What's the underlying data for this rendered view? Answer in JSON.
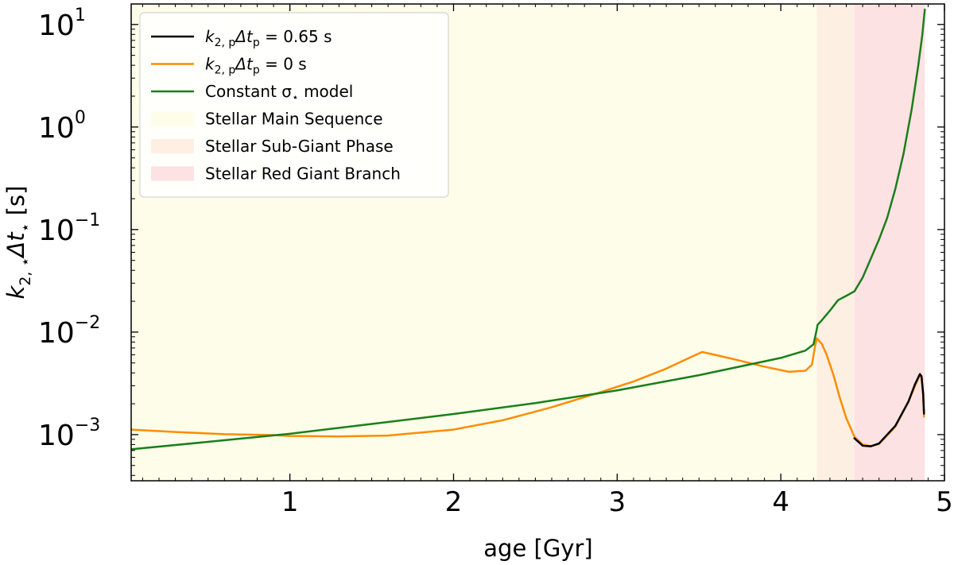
{
  "chart_data": {
    "type": "line",
    "xlabel": "age [Gyr]",
    "ylabel_parts": {
      "base": "k",
      "sub": "2, ⋆",
      "rest": "Δt",
      "rest_sub": "⋆",
      "unit": " [s]"
    },
    "xlim": [
      0.03,
      5.0
    ],
    "ylim_log10": [
      -3.45,
      1.2
    ],
    "x_ticks": [
      1,
      2,
      3,
      4,
      5
    ],
    "x_tick_labels": [
      "1",
      "2",
      "3",
      "4",
      "5"
    ],
    "y_ticks_exp": [
      -3,
      -2,
      -1,
      0,
      1
    ],
    "y_tick_labels": [
      {
        "base": "10",
        "exp": "−3"
      },
      {
        "base": "10",
        "exp": "−2"
      },
      {
        "base": "10",
        "exp": "−1"
      },
      {
        "base": "10",
        "exp": "0"
      },
      {
        "base": "10",
        "exp": "1"
      }
    ],
    "phases": [
      {
        "name": "Stellar Main Sequence",
        "x0": 0.03,
        "x1": 4.22,
        "color": "#fdfdea"
      },
      {
        "name": "Stellar Sub-Giant Phase",
        "x0": 4.22,
        "x1": 4.45,
        "color": "#fdf0e3"
      },
      {
        "name": "Stellar Red Giant Branch",
        "x0": 4.45,
        "x1": 4.88,
        "color": "#fde2e4"
      }
    ],
    "series": [
      {
        "name": "k_{2,p}Δt_p = 0.65 s",
        "color": "#000000",
        "width": 2.5,
        "points": [
          [
            4.45,
            0.00092
          ],
          [
            4.5,
            0.00078
          ],
          [
            4.55,
            0.00077
          ],
          [
            4.6,
            0.00082
          ],
          [
            4.7,
            0.00122
          ],
          [
            4.78,
            0.0021
          ],
          [
            4.82,
            0.0031
          ],
          [
            4.85,
            0.0039
          ],
          [
            4.86,
            0.0037
          ],
          [
            4.87,
            0.0025
          ],
          [
            4.875,
            0.0016
          ]
        ]
      },
      {
        "name": "k_{2,p}Δt_p = 0 s",
        "color": "#ff8c00",
        "width": 2.5,
        "points": [
          [
            0.03,
            0.00112
          ],
          [
            0.3,
            0.00106
          ],
          [
            0.6,
            0.00101
          ],
          [
            0.9,
            0.00099
          ],
          [
            1.0,
            0.00097
          ],
          [
            1.3,
            0.00096
          ],
          [
            1.6,
            0.00098
          ],
          [
            2.0,
            0.00112
          ],
          [
            2.3,
            0.00138
          ],
          [
            2.6,
            0.00185
          ],
          [
            2.9,
            0.0026
          ],
          [
            3.1,
            0.0033
          ],
          [
            3.3,
            0.0044
          ],
          [
            3.45,
            0.0057
          ],
          [
            3.52,
            0.0064
          ],
          [
            3.7,
            0.0055
          ],
          [
            3.9,
            0.0046
          ],
          [
            4.05,
            0.0041
          ],
          [
            4.15,
            0.0042
          ],
          [
            4.19,
            0.0048
          ],
          [
            4.21,
            0.0074
          ],
          [
            4.22,
            0.0087
          ],
          [
            4.25,
            0.0077
          ],
          [
            4.28,
            0.006
          ],
          [
            4.32,
            0.0039
          ],
          [
            4.36,
            0.0023
          ],
          [
            4.4,
            0.00145
          ],
          [
            4.45,
            0.00095
          ],
          [
            4.5,
            0.0008
          ],
          [
            4.55,
            0.00077
          ],
          [
            4.6,
            0.00081
          ],
          [
            4.7,
            0.0012
          ],
          [
            4.78,
            0.0021
          ],
          [
            4.82,
            0.003
          ],
          [
            4.85,
            0.0038
          ],
          [
            4.86,
            0.0036
          ],
          [
            4.87,
            0.0024
          ],
          [
            4.875,
            0.0015
          ]
        ]
      },
      {
        "name": "Constant σ⋆ model",
        "color": "#1a7f1a",
        "width": 2.5,
        "points": [
          [
            0.03,
            0.00072
          ],
          [
            0.5,
            0.00085
          ],
          [
            1.0,
            0.00102
          ],
          [
            1.5,
            0.00127
          ],
          [
            2.0,
            0.00159
          ],
          [
            2.5,
            0.00203
          ],
          [
            3.0,
            0.0027
          ],
          [
            3.5,
            0.0038
          ],
          [
            4.0,
            0.0056
          ],
          [
            4.15,
            0.0066
          ],
          [
            4.2,
            0.0076
          ],
          [
            4.215,
            0.0098
          ],
          [
            4.225,
            0.0118
          ],
          [
            4.25,
            0.013
          ],
          [
            4.3,
            0.0162
          ],
          [
            4.35,
            0.0205
          ],
          [
            4.4,
            0.0226
          ],
          [
            4.45,
            0.025
          ],
          [
            4.5,
            0.034
          ],
          [
            4.55,
            0.052
          ],
          [
            4.6,
            0.08
          ],
          [
            4.65,
            0.13
          ],
          [
            4.7,
            0.25
          ],
          [
            4.75,
            0.55
          ],
          [
            4.8,
            1.5
          ],
          [
            4.84,
            4.0
          ],
          [
            4.865,
            8.0
          ],
          [
            4.88,
            14.0
          ]
        ]
      }
    ],
    "legend": {
      "placement": "top-left",
      "entries": [
        {
          "kind": "line",
          "color": "#000000",
          "label_main": "k",
          "label_sub": "2, p",
          "label_delta": "Δt",
          "label_sub2": "p",
          "label_rest": " = 0.65 s"
        },
        {
          "kind": "line",
          "color": "#ff8c00",
          "label_main": "k",
          "label_sub": "2, p",
          "label_delta": "Δt",
          "label_sub2": "p",
          "label_rest": " = 0 s"
        },
        {
          "kind": "line",
          "color": "#1a7f1a",
          "label_plain": "Constant σ",
          "label_sub": "⋆",
          "label_rest": " model"
        },
        {
          "kind": "patch",
          "color": "#fdfdea",
          "label_plain": "Stellar Main Sequence"
        },
        {
          "kind": "patch",
          "color": "#fdf0e3",
          "label_plain": "Stellar Sub-Giant Phase"
        },
        {
          "kind": "patch",
          "color": "#fde2e4",
          "label_plain": "Stellar Red Giant Branch"
        }
      ]
    }
  }
}
